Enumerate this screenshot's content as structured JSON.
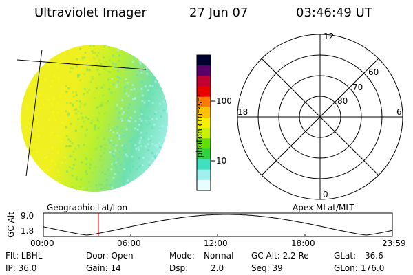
{
  "header": {
    "instrument": "Ultraviolet Imager",
    "date": "27 Jun 07",
    "time": "03:46:49 UT"
  },
  "colorbar": {
    "unit_label": "photon cm⁻²s⁻¹",
    "ticks": [
      "100",
      "10"
    ],
    "tick_values": [
      100,
      10
    ],
    "scale": "log",
    "colors": [
      "#000030",
      "#5a006a",
      "#c00030",
      "#e80000",
      "#ff7a00",
      "#ffc000",
      "#f8f000",
      "#c8f000",
      "#60e000",
      "#30d040",
      "#40e0c0",
      "#a0f0f0",
      "#e8ffff"
    ]
  },
  "image_panel": {
    "colors": {
      "left": "#f0f020",
      "mid": "#b8f030",
      "right": "#70e0b0",
      "edge": "#a0f0e8"
    },
    "label": "Geographic Lat/Lon"
  },
  "polar_plot": {
    "label": "Apex MLat/MLT",
    "mlt_labels": {
      "top": "12",
      "left": "18",
      "right": "6",
      "bottom": "0"
    },
    "lat_labels": [
      "60",
      "70",
      "80"
    ],
    "lat_values": [
      60,
      70,
      80
    ]
  },
  "altitude_plot": {
    "ylabel": "GC Alt",
    "yticks": [
      "9.0",
      "1.8"
    ],
    "ylim": [
      1.8,
      9.0
    ],
    "xticks": [
      "00:00",
      "06:00",
      "12:00",
      "18:00",
      "23:59"
    ],
    "current_time_hours": 3.78,
    "marker_color": "#cc0000"
  },
  "info": {
    "filter": "Flt: LBHL",
    "door": "Door: Open",
    "mode_label": "Mode:",
    "mode_value": "Normal",
    "gc_alt": "GC Alt: 2.2 Re",
    "glat_label": "GLat:",
    "glat_value": "36.6",
    "ip": "IP: 36.0",
    "gain": "Gain: 14",
    "dsp_label": "Dsp:",
    "dsp_value": "2.0",
    "seq": "Seq: 39",
    "glon_label": "GLon:",
    "glon_value": "176.0"
  }
}
